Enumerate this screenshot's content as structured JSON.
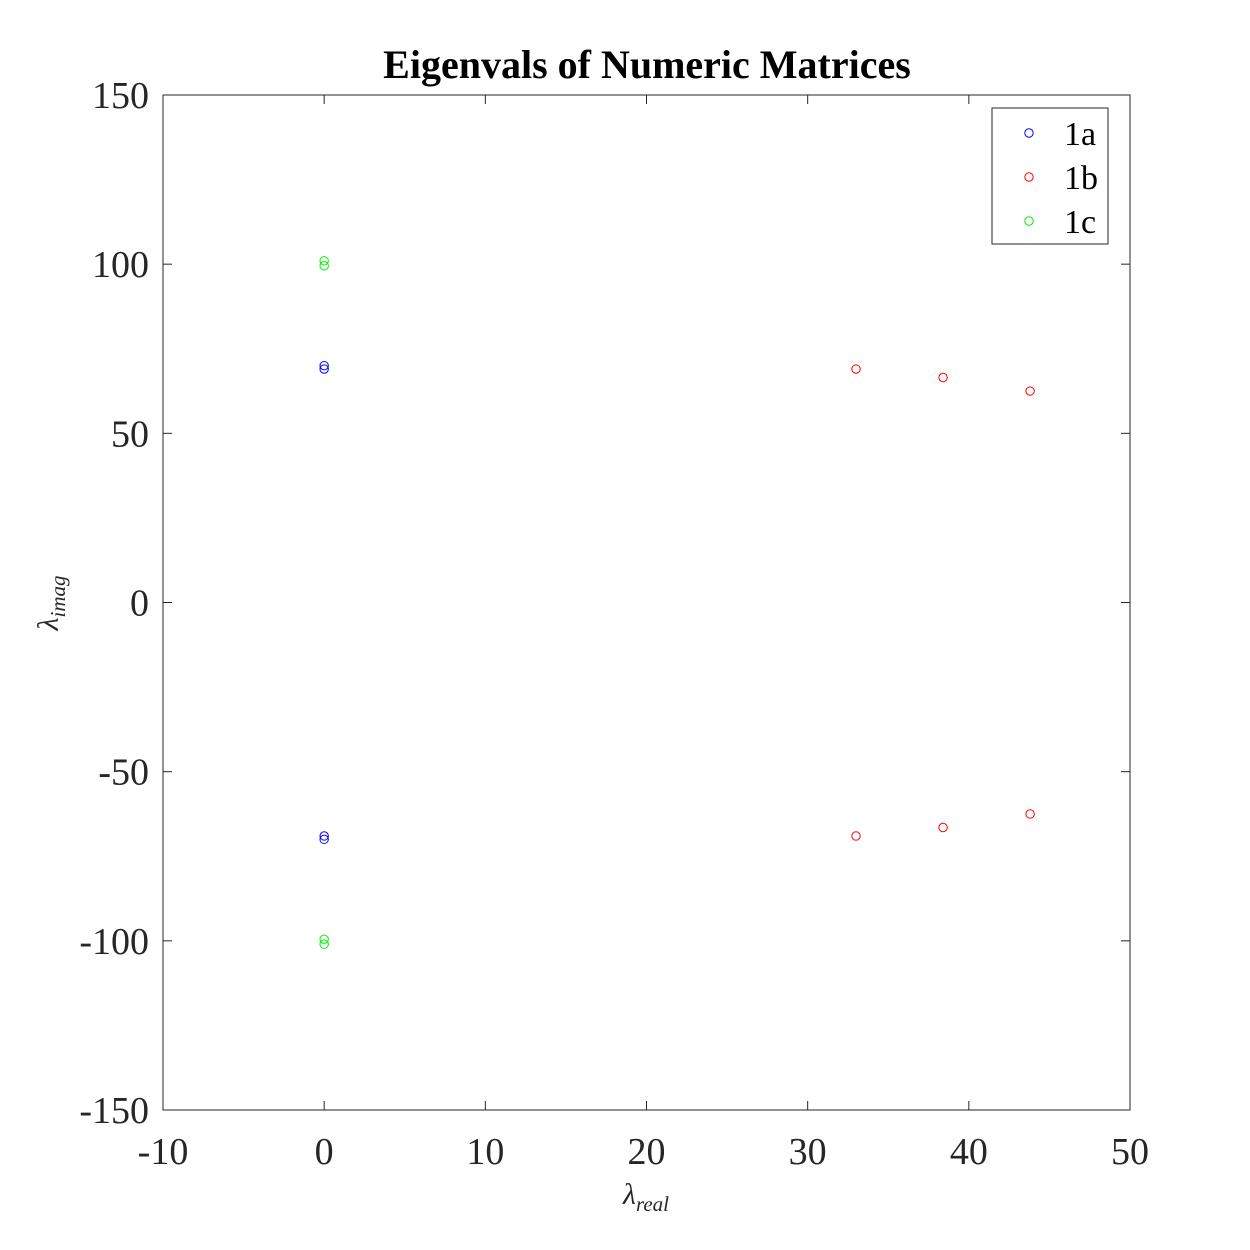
{
  "chart_data": {
    "type": "scatter",
    "title": "Eigenvals of Numeric Matrices",
    "xlabel": {
      "symbol": "λ",
      "subscript": "real"
    },
    "ylabel": {
      "symbol": "λ",
      "subscript": "imag"
    },
    "xlim": [
      -10,
      50
    ],
    "ylim": [
      -150,
      150
    ],
    "xticks": [
      -10,
      0,
      10,
      20,
      30,
      40,
      50
    ],
    "yticks": [
      -150,
      -100,
      -50,
      0,
      50,
      100,
      150
    ],
    "grid": false,
    "legend_position": "top-right",
    "marker": "circle-open",
    "series": [
      {
        "name": "1a",
        "color": "#0000ff",
        "points": [
          [
            0,
            70
          ],
          [
            0,
            69
          ],
          [
            0,
            -69
          ],
          [
            0,
            -70
          ]
        ]
      },
      {
        "name": "1b",
        "color": "#ff0000",
        "points": [
          [
            33,
            69
          ],
          [
            38.4,
            66.5
          ],
          [
            43.8,
            62.5
          ],
          [
            33,
            -69
          ],
          [
            38.4,
            -66.5
          ],
          [
            43.8,
            -62.5
          ]
        ]
      },
      {
        "name": "1c",
        "color": "#00ee00",
        "points": [
          [
            0,
            101
          ],
          [
            0,
            99.5
          ],
          [
            0,
            -99.5
          ],
          [
            0,
            -101
          ]
        ]
      }
    ]
  }
}
